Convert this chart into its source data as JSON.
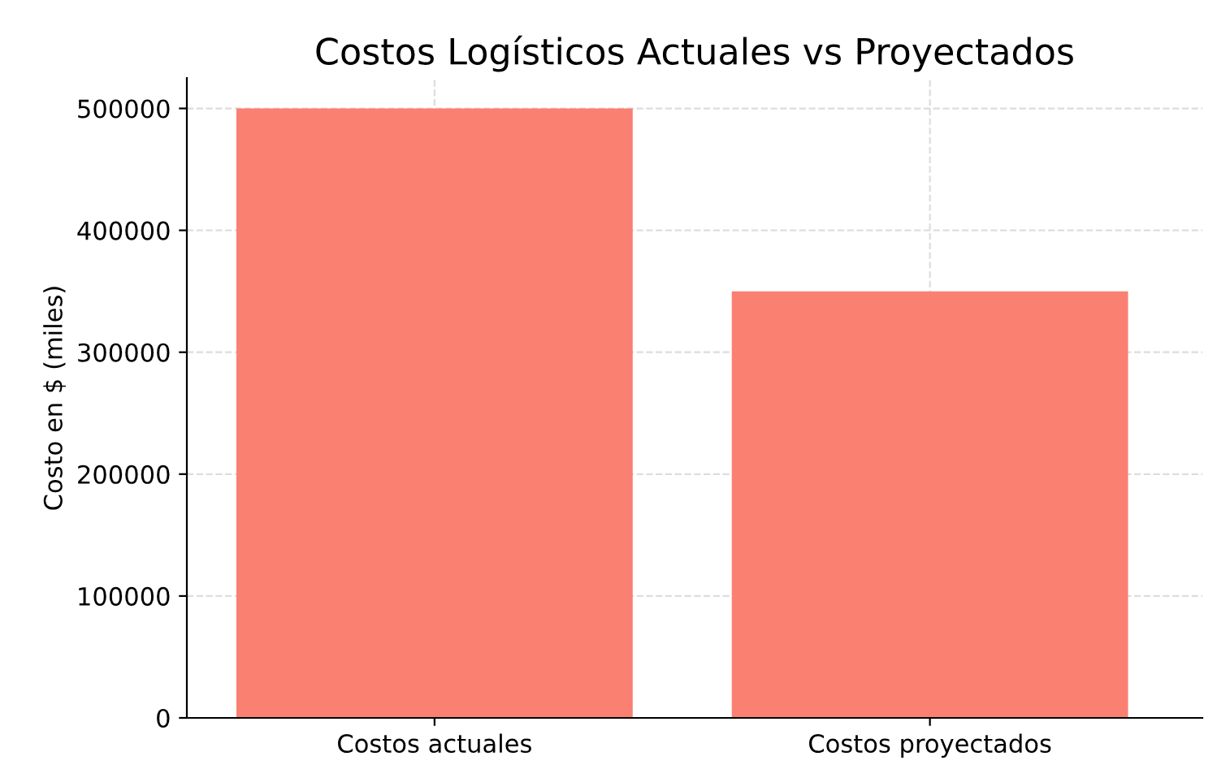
{
  "chart_data": {
    "type": "bar",
    "title": "Costos Logísticos Actuales vs Proyectados",
    "ylabel": "Costo en $ (miles)",
    "categories": [
      "Costos actuales",
      "Costos proyectados"
    ],
    "values": [
      500000,
      350000
    ],
    "color": "#fa8072",
    "ylim": [
      0,
      525000
    ],
    "yticks": [
      0,
      100000,
      200000,
      300000,
      400000,
      500000
    ],
    "grid": true
  }
}
